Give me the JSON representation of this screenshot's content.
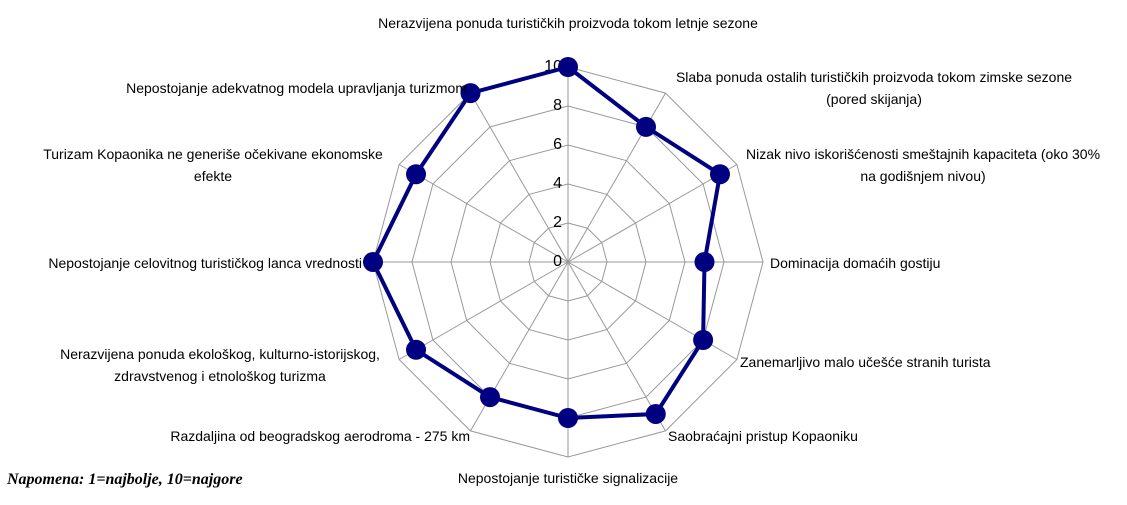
{
  "chart_data": {
    "type": "radar",
    "categories": [
      "Nerazvijena ponuda turističkih proizvoda tokom letnje sezone",
      "Slaba ponuda ostalih turističkih proizvoda tokom zimske sezone (pored skijanja)",
      "Nizak nivo iskorišćenosti smeštajnih kapaciteta (oko 30% na godišnjem nivou)",
      "Dominacija domaćih gostiju",
      "Zanemarljivo malo učešće stranih turista",
      "Saobraćajni pristup Kopaoniku",
      "Nepostojanje turističke signalizacije",
      "Razdaljina od beogradskog aerodroma - 275 km",
      "Nerazvijena ponuda ekološkog, kulturno-istorijskog, zdravstvenog i etnološkog turizma",
      "Nepostojanje celovitnog turističkog lanca vrednosti",
      "Turizam Kopaonika ne generiše očekivane ekonomske efekte",
      "Nepostojanje adekvatnog modela upravljanja turizmom"
    ],
    "values": [
      10,
      8,
      9,
      7,
      8,
      9,
      8,
      8,
      9,
      10,
      9,
      10
    ],
    "color": "#000080",
    "ylim": [
      0,
      10
    ],
    "yticks": [
      0,
      2,
      4,
      6,
      8,
      10
    ],
    "grid": true,
    "note": "Napomena: 1=najbolje, 10=najgore"
  }
}
